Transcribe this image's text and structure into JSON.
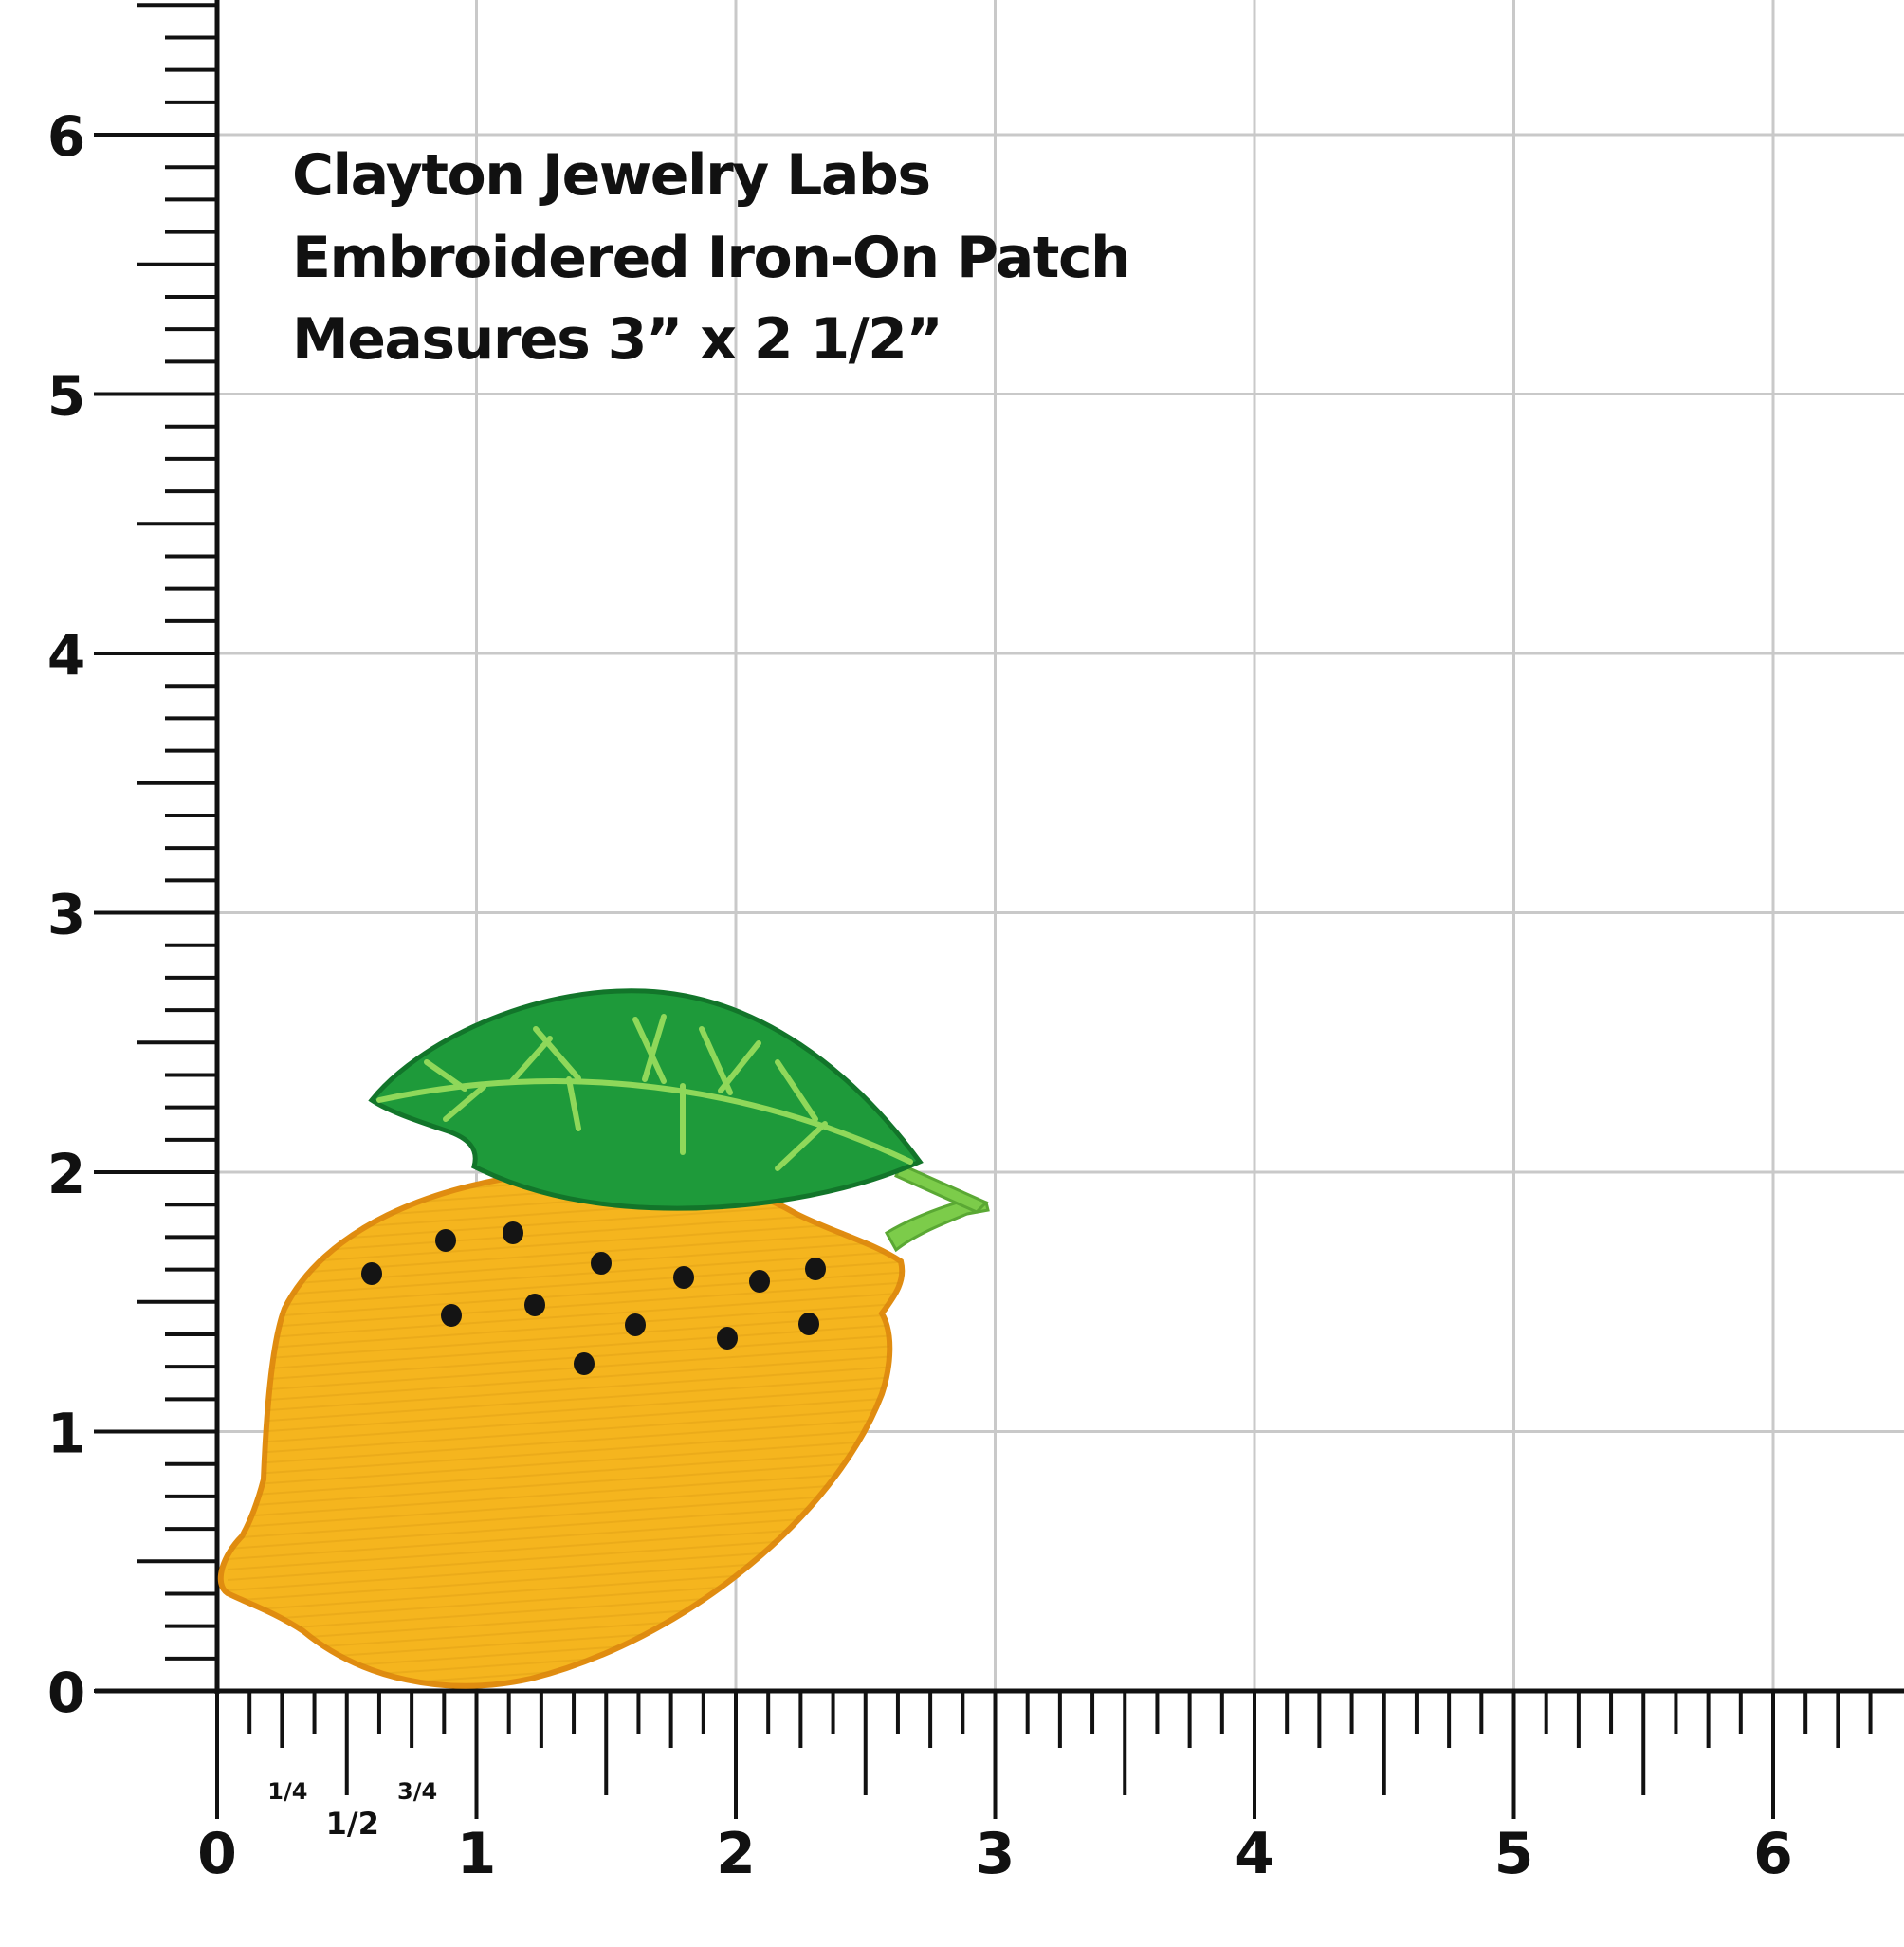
{
  "title_lines": [
    "Clayton Jewelry Labs",
    "Embroidered Iron-On Patch",
    "Measures 3” x 2 1/2”"
  ],
  "y_axis_labels": [
    "0",
    "1",
    "2",
    "3",
    "4",
    "5",
    "6"
  ],
  "x_axis_labels": [
    "0",
    "1",
    "2",
    "3",
    "4",
    "5",
    "6"
  ],
  "x_fraction_labels": [
    "1/4",
    "1/2",
    "3/4"
  ],
  "product": {
    "name": "lemon-patch",
    "colors": {
      "lemon": "#f5b51e",
      "lemon_border": "#e08c10",
      "leaf": "#1e9a3a",
      "leaf_vein": "#8fd85a",
      "stem": "#7ccc4a",
      "seed": "#141414"
    }
  },
  "grid_color": "#c9c9c9",
  "ruler_color": "#111111"
}
